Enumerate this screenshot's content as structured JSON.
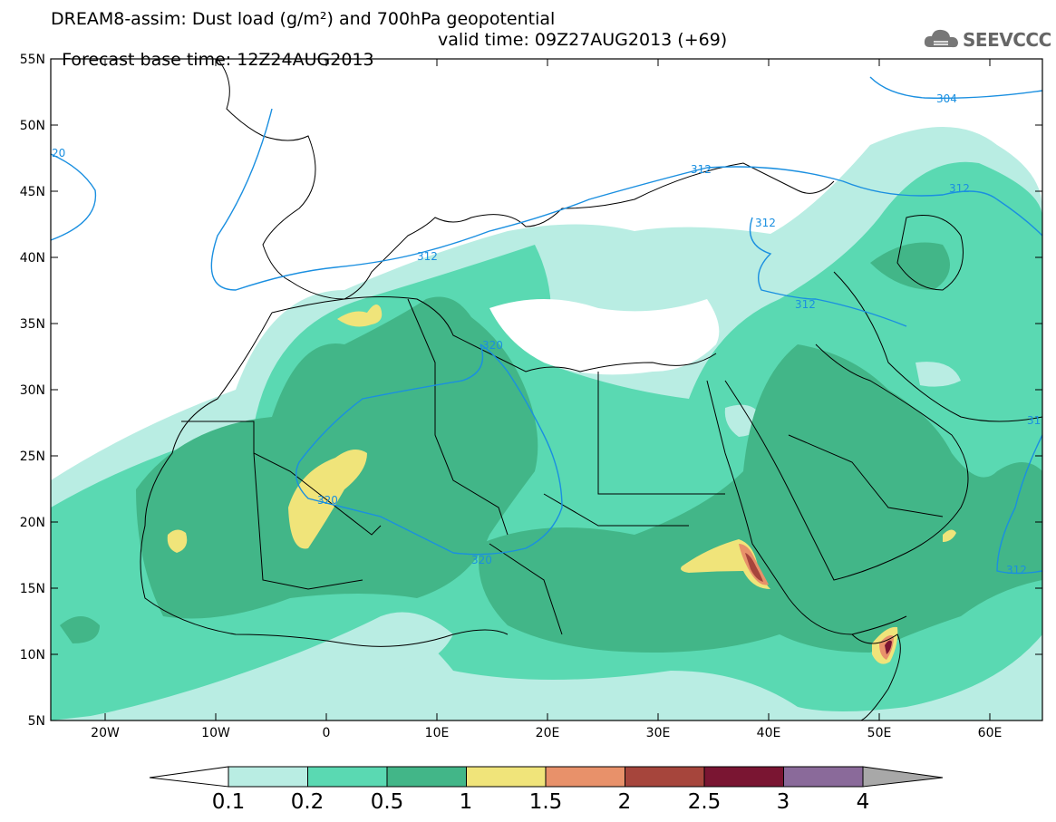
{
  "title": {
    "line1": "DREAM8-assim: Dust load (g/m²) and 700hPa geopotential",
    "base_time": "Forecast base time: 12Z24AUG2013",
    "valid_time": "valid time: 09Z27AUG2013 (+69)"
  },
  "logo": {
    "text": "SEEVCCC",
    "icon": "cloud-logo-icon"
  },
  "map": {
    "lat_labels": [
      "55N",
      "50N",
      "45N",
      "40N",
      "35N",
      "30N",
      "25N",
      "20N",
      "15N",
      "10N",
      "5N"
    ],
    "lon_labels": [
      "20W",
      "10W",
      "0",
      "10E",
      "20E",
      "30E",
      "40E",
      "50E",
      "60E"
    ],
    "contour_labels": [
      "304",
      "312",
      "312",
      "312",
      "312",
      "312",
      "320",
      "320",
      "320",
      "20",
      "312",
      "31"
    ],
    "colors": {
      "c0_1": "#b9ede3",
      "c0_2": "#5ad9b2",
      "c0_5": "#42b688",
      "c1": "#f0e47a",
      "c1_5": "#e8916a",
      "c2": "#a6453c",
      "c2_5": "#7a1532",
      "c3": "#8a6a9a",
      "c4": "#a8a8a8",
      "contour": "#1a8fe0"
    }
  },
  "colorbar": {
    "labels": [
      "0.1",
      "0.2",
      "0.5",
      "1",
      "1.5",
      "2",
      "2.5",
      "3",
      "4"
    ],
    "colors": [
      "#b9ede3",
      "#5ad9b2",
      "#42b688",
      "#f0e47a",
      "#e8916a",
      "#a6453c",
      "#7a1532",
      "#8a6a9a"
    ]
  }
}
